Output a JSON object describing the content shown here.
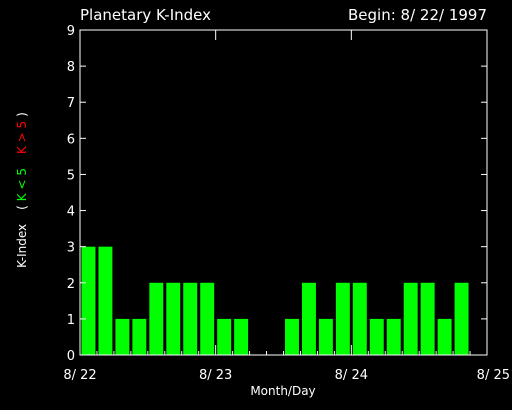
{
  "chart_data": {
    "type": "bar",
    "title": "Planetary K-Index",
    "begin_label": "Begin: 8/ 22/ 1997",
    "xlabel": "Month/Day",
    "ylabel": {
      "main": "K-Index",
      "open": "(",
      "green_part": "K < 5",
      "red_part": "K > 5",
      "close": ")"
    },
    "ylim": [
      0,
      9
    ],
    "yticks": [
      "0",
      "1",
      "2",
      "3",
      "4",
      "5",
      "6",
      "7",
      "8",
      "9"
    ],
    "xlim": [
      0,
      24
    ],
    "xticks": [
      {
        "x": 0,
        "label": "8/ 22"
      },
      {
        "x": 8,
        "label": "8/ 23"
      },
      {
        "x": 16,
        "label": "8/ 24"
      },
      {
        "x": 24,
        "label": "8/ 25"
      }
    ],
    "values": [
      3,
      3,
      1,
      1,
      2,
      2,
      2,
      2,
      1,
      1,
      0,
      0,
      1,
      2,
      1,
      2,
      2,
      1,
      1,
      2,
      2,
      1,
      2,
      0
    ],
    "colors": {
      "background": "#000000",
      "axes": "#ffffff",
      "bar_low": "#00ff00",
      "bar_high": "#ff0000",
      "label_green": "#00ff00",
      "label_red": "#ff0000"
    }
  }
}
